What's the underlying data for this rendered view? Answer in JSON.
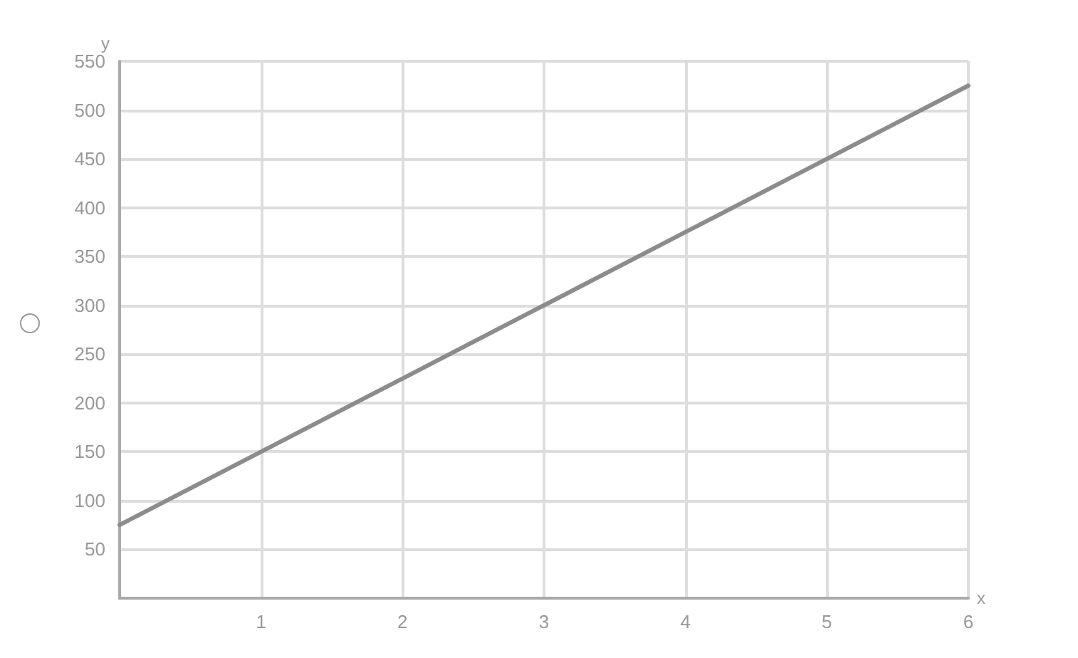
{
  "chart_data": {
    "type": "line",
    "xlabel": "x",
    "ylabel": "y",
    "x": [
      0,
      1,
      2,
      3,
      4,
      5,
      6
    ],
    "series": [
      {
        "color": "#8c8c8c",
        "values": [
          75,
          150,
          225,
          300,
          375,
          450,
          525
        ]
      }
    ],
    "xlim": [
      0,
      6
    ],
    "xticks": [
      1,
      2,
      3,
      4,
      5,
      6
    ],
    "ylim": [
      0,
      550
    ],
    "yticks": [
      50,
      100,
      150,
      200,
      250,
      300,
      350,
      400,
      450,
      500,
      550
    ],
    "grid": true,
    "marker": "none",
    "line_style": "solid"
  }
}
